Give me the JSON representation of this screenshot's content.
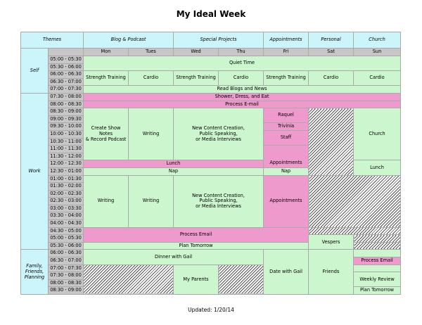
{
  "title": "My Ideal Week",
  "footer": "Updated: 1/20/14",
  "colors": {
    "header_cyan": "#ccf5fb",
    "activity_green": "#ccf6cd",
    "activity_pink": "#ef9acc",
    "time_grey": "#c7c7c7"
  },
  "header": {
    "themes": "Themes",
    "blog": "Blog & Podcast",
    "special": "Special Projects",
    "appointments": "Appointments",
    "personal": "Personal",
    "church": "Church"
  },
  "days": [
    "Mon",
    "Tues",
    "Wed",
    "Thu",
    "Fri",
    "Sat",
    "Sun"
  ],
  "themes": {
    "self": "Self",
    "work": "Work",
    "family": "Family,\nFriends,\nPlanning"
  },
  "times": [
    "05:00 - 05:30",
    "05:30 - 06:00",
    "06:00 - 06:30",
    "06:30 - 07:00",
    "07:00 - 07:30",
    "07:30 - 08:00",
    "08:00 - 08:30",
    "08:30 - 09:00",
    "09:00 - 09:30",
    "09:30 - 10:00",
    "10:00 - 10:30",
    "10:30 - 11:00",
    "11:00 - 11:30",
    "11:30 - 12:00",
    "12:00 - 12:30",
    "12:30 - 01:00",
    "01:00 - 01:30",
    "01:30 - 02:00",
    "02:00 - 02:30",
    "02:30 - 03:00",
    "03:00 - 03:30",
    "03:30 - 04:00",
    "04:00 - 04:30",
    "04:30 - 05:00",
    "05:00 - 05:30",
    "05:30 - 06:00",
    "06:00 - 06:30",
    "06:30 - 07:00",
    "07:00 - 07:30",
    "07:30 - 08:00",
    "08:00 - 08:30",
    "08:30 - 09:00"
  ],
  "activities": {
    "quiet_time": "Quiet Time",
    "strength_mon": "Strength Training",
    "cardio_tue": "Cardio",
    "strength_wed": "Strength Training",
    "cardio_thu": "Cardio",
    "strength_fri": "Strength Training",
    "cardio_sat": "Cardio",
    "cardio_sun": "Cardio",
    "read_blogs": "Read Blogs and News",
    "shower": "Shower, Dress, and Eat",
    "process_email_am": "Process E-mail",
    "create_notes": "Create Show Notes\n& Record Podcast",
    "writing_am": "Writing",
    "content_am": "New Content Creation,\nPublic Speaking,\nor Media Interviews",
    "raquel": "Raquel",
    "trivinia": "Trivinia",
    "staff": "Staff",
    "appointments_am": "Appointments",
    "church": "Church",
    "lunch": "Lunch",
    "lunch_sun": "Lunch",
    "nap": "Nap",
    "nap_fri": "Nap",
    "writing_mon_pm": "Writing",
    "writing_tue_pm": "Writing",
    "content_pm": "New Content Creation,\nPublic Speaking,\nor Media Interviews",
    "appointments_pm": "Appointments",
    "process_email_pm": "Process Email",
    "vespers": "Vespers",
    "plan_tomorrow": "Plan Tomorrow",
    "dinner_gail": "Dinner with Gail",
    "process_email_sun": "Process Email",
    "my_parents": "My Parents",
    "date_gail": "Date with Gail",
    "friends": "Friends",
    "weekly_review": "Weekly Review",
    "plan_tomorrow_sun": "Plan Tomorrow"
  }
}
